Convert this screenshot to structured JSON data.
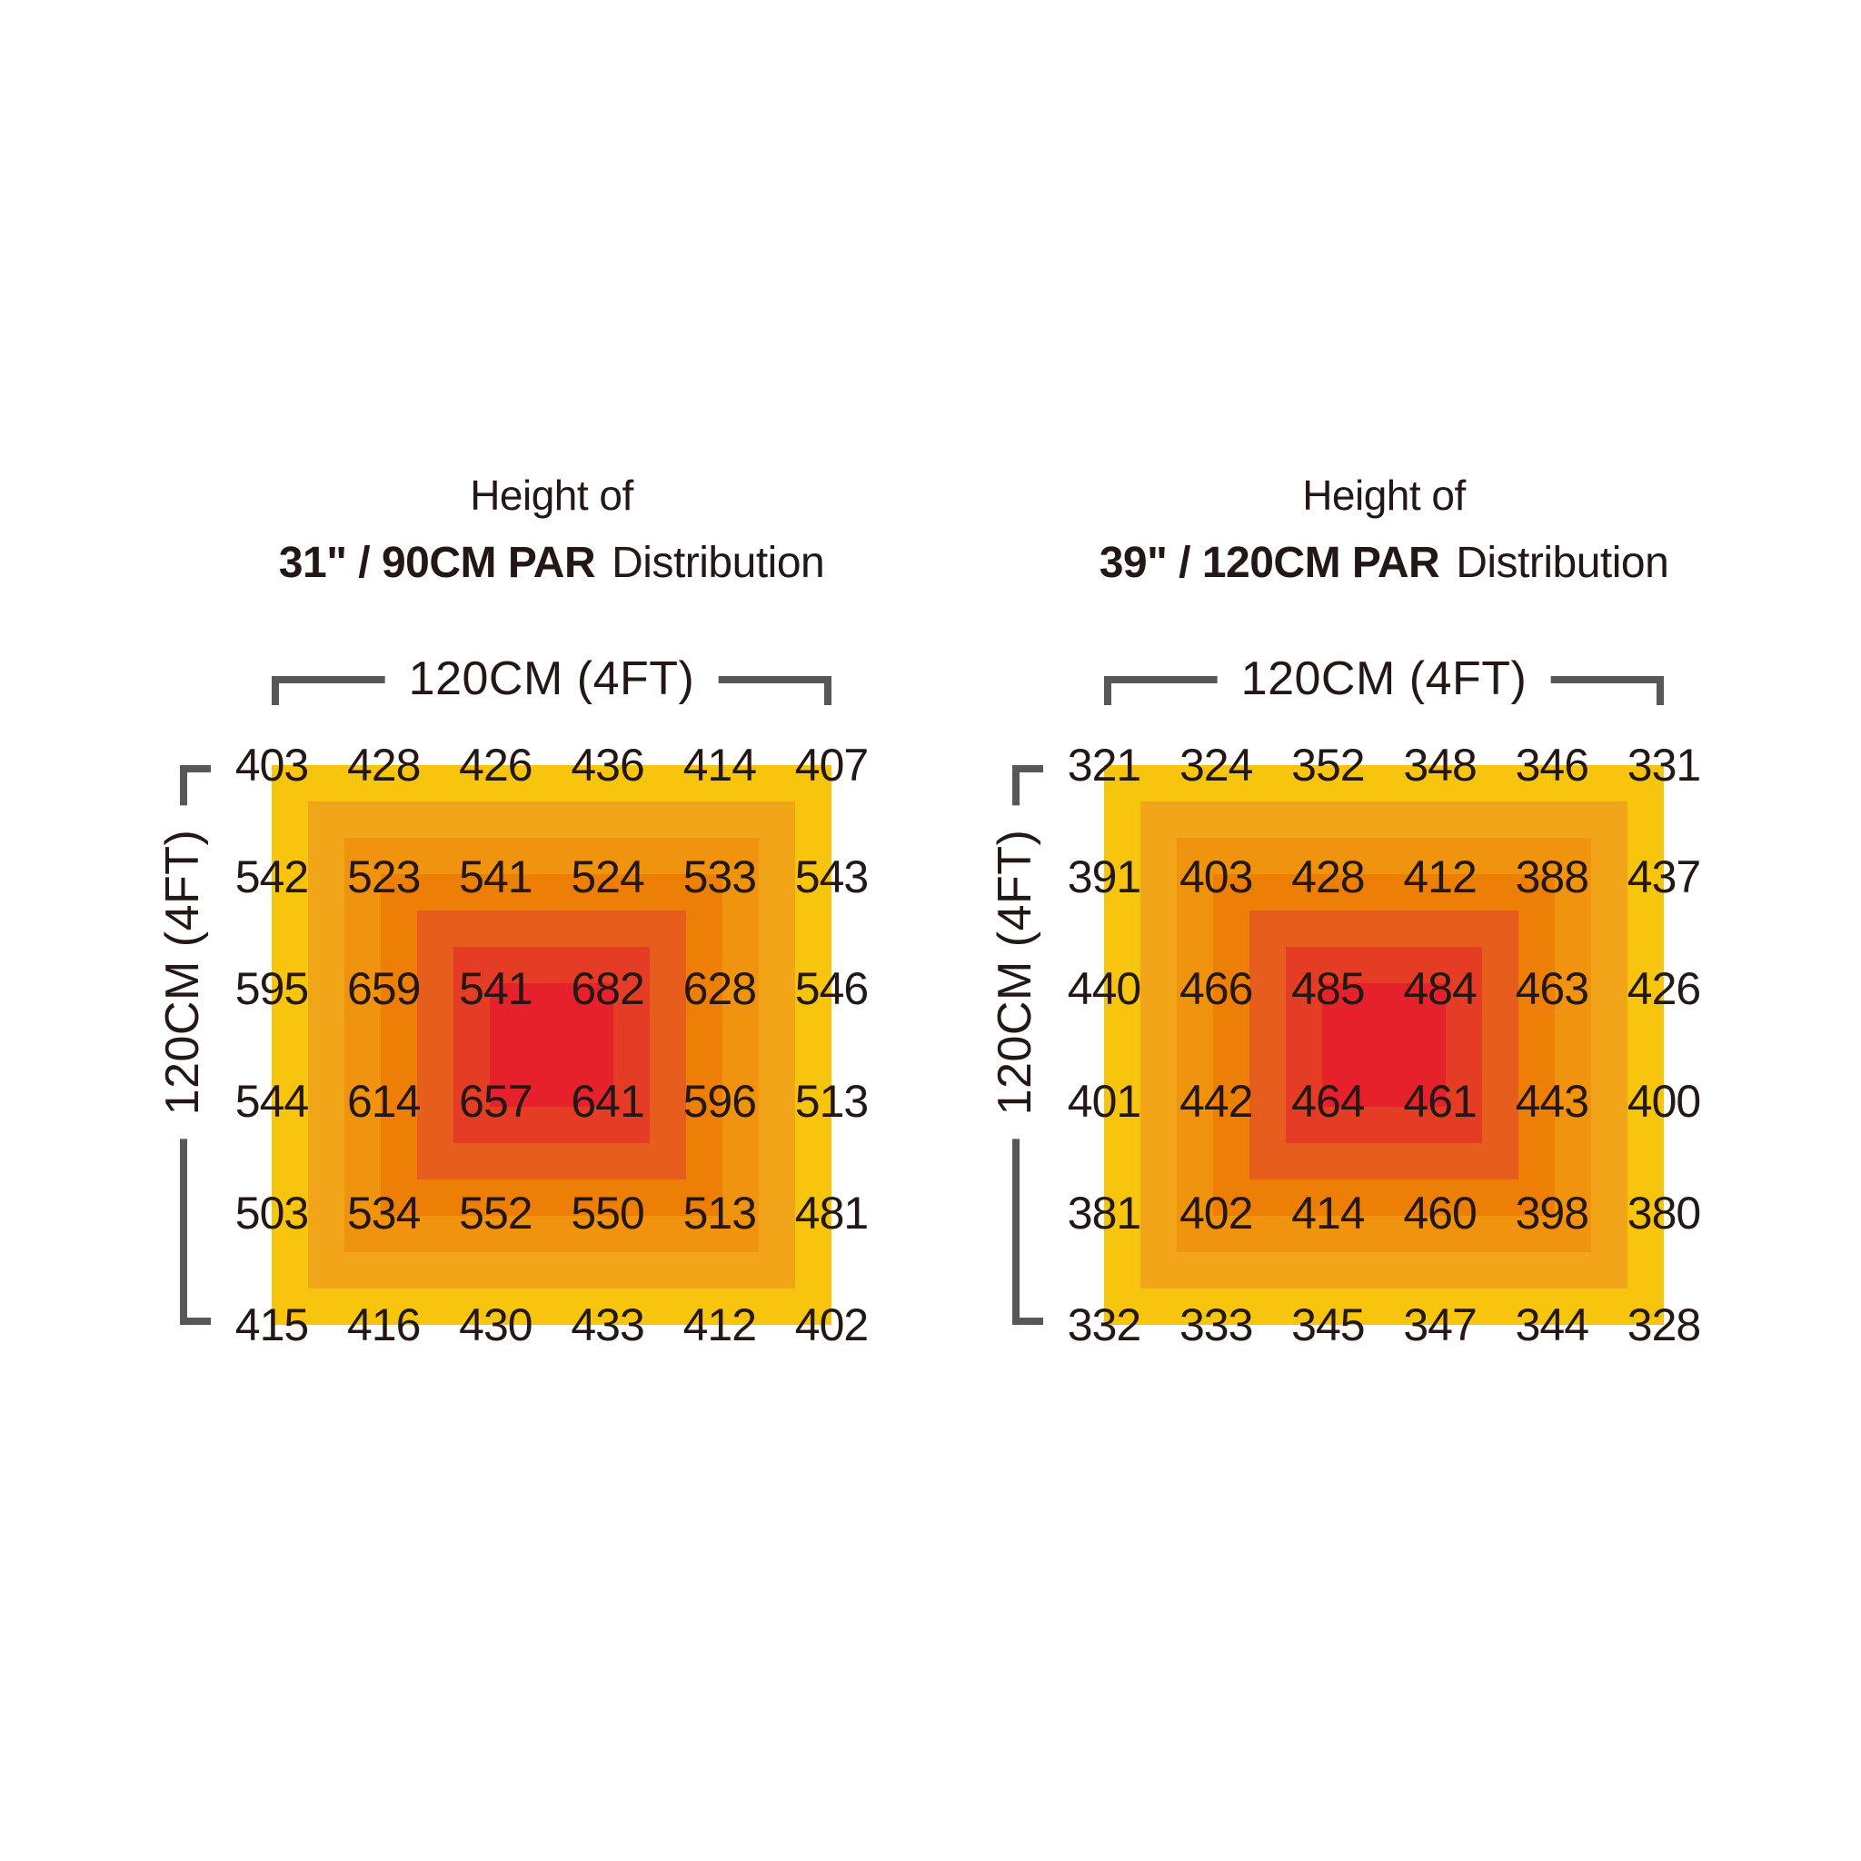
{
  "style": {
    "background": "#FFFFFF",
    "text_color": "#231815",
    "bracket_color": "#595757",
    "heat_colors": [
      "#F7C50E",
      "#F2A519",
      "#F0930E",
      "#ED7F06",
      "#E75D1D",
      "#E53C25",
      "#E7212B"
    ]
  },
  "chart_data": [
    {
      "type": "heatmap",
      "title_line1": "Height of",
      "title_bold": "31\" / 90CM PAR",
      "title_suffix": "Distribution",
      "x_axis_label": "120CM (4FT)",
      "y_axis_label": "120CM (4FT)",
      "grid_rows": 6,
      "grid_cols": 6,
      "values": [
        [
          403,
          428,
          426,
          436,
          414,
          407
        ],
        [
          542,
          523,
          541,
          524,
          533,
          543
        ],
        [
          595,
          659,
          541,
          682,
          628,
          546
        ],
        [
          544,
          614,
          657,
          641,
          596,
          513
        ],
        [
          503,
          534,
          552,
          550,
          513,
          481
        ],
        [
          415,
          416,
          430,
          433,
          412,
          402
        ]
      ]
    },
    {
      "type": "heatmap",
      "title_line1": "Height of",
      "title_bold": "39\" / 120CM PAR",
      "title_suffix": "Distribution",
      "x_axis_label": "120CM (4FT)",
      "y_axis_label": "120CM (4FT)",
      "grid_rows": 6,
      "grid_cols": 6,
      "values": [
        [
          321,
          324,
          352,
          348,
          346,
          331
        ],
        [
          391,
          403,
          428,
          412,
          388,
          437
        ],
        [
          440,
          466,
          485,
          484,
          463,
          426
        ],
        [
          401,
          442,
          464,
          461,
          443,
          400
        ],
        [
          381,
          402,
          414,
          460,
          398,
          380
        ],
        [
          332,
          333,
          345,
          347,
          344,
          328
        ]
      ]
    }
  ]
}
